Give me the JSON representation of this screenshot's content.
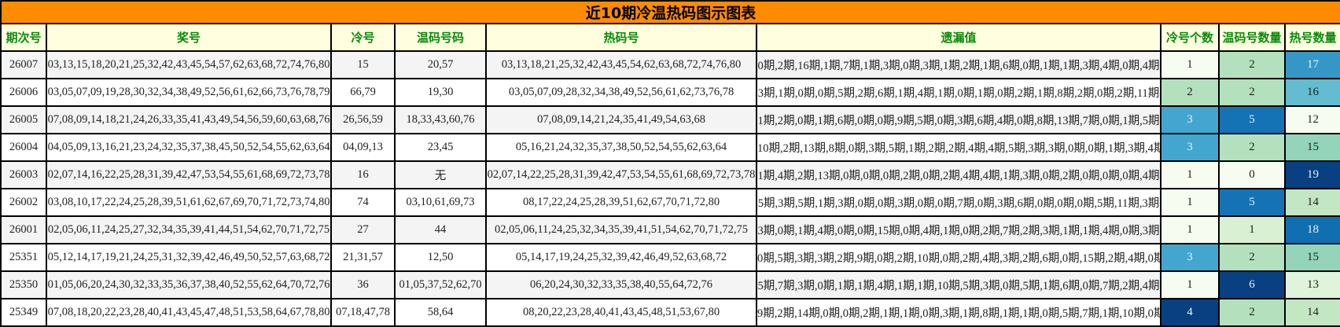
{
  "title": "近10期冷温热码图示图表",
  "headers": [
    "期次号",
    "奖号",
    "冷号",
    "温码号码",
    "热码号",
    "遗漏值",
    "冷号个数",
    "温码号数量",
    "热号数量"
  ],
  "rows": [
    {
      "issue": "26007",
      "numbers": "03,13,15,18,20,21,25,32,42,43,45,54,57,62,63,68,72,74,76,80",
      "cold": "15",
      "warm": "20,57",
      "hot": "03,13,18,21,25,32,42,43,45,54,62,63,68,72,74,76,80",
      "omission": "0期,2期,16期,1期,7期,1期,3期,0期,3期,1期,2期,1期,6期,0期,1期,1期,3期,4期,0期,4期",
      "cold_count": {
        "value": "1",
        "bg": "#f7fcf0",
        "fg": "#222"
      },
      "warm_count": {
        "value": "2",
        "bg": "#b3e1bd",
        "fg": "#222"
      },
      "hot_count": {
        "value": "17",
        "bg": "#3597c6",
        "fg": "#e8f0f8"
      }
    },
    {
      "issue": "26006",
      "numbers": "03,05,07,09,19,28,30,32,34,38,49,52,56,61,62,66,73,76,78,79",
      "cold": "66,79",
      "warm": "19,30",
      "hot": "03,05,07,09,28,32,34,38,49,52,56,61,62,73,76,78",
      "omission": "3期,1期,0期,0期,5期,2期,6期,1期,4期,1期,0期,1期,0期,2期,1期,8期,2期,0期,2期,11期",
      "cold_count": {
        "value": "2",
        "bg": "#b3e1bd",
        "fg": "#222"
      },
      "warm_count": {
        "value": "2",
        "bg": "#b3e1bd",
        "fg": "#222"
      },
      "hot_count": {
        "value": "16",
        "bg": "#63bccf",
        "fg": "#222"
      }
    },
    {
      "issue": "26005",
      "numbers": "07,08,09,14,18,21,24,26,33,35,41,43,49,54,56,59,60,63,68,76",
      "cold": "26,56,59",
      "warm": "18,33,43,60,76",
      "hot": "07,08,09,14,21,24,35,41,49,54,63,68",
      "omission": "1期,2期,0期,1期,6期,0期,0期,9期,5期,0期,3期,6期,4期,0期,8期,13期,7期,0期,1期,5期",
      "cold_count": {
        "value": "3",
        "bg": "#42a6cf",
        "fg": "#e8f0f8"
      },
      "warm_count": {
        "value": "5",
        "bg": "#1473b4",
        "fg": "#e8f0f8"
      },
      "hot_count": {
        "value": "12",
        "bg": "#f7fcf0",
        "fg": "#222"
      }
    },
    {
      "issue": "26004",
      "numbers": "04,05,09,13,16,21,23,24,32,35,37,38,45,50,52,54,55,62,63,64",
      "cold": "04,09,13",
      "warm": "23,45",
      "hot": "05,16,21,24,32,35,37,38,50,52,54,55,62,63,64",
      "omission": "10期,2期,13期,8期,0期,3期,5期,1期,2期,2期,4期,4期,5期,3期,3期,0期,0期,1期,3期,4期",
      "cold_count": {
        "value": "3",
        "bg": "#42a6cf",
        "fg": "#e8f0f8"
      },
      "warm_count": {
        "value": "2",
        "bg": "#b3e1bd",
        "fg": "#222"
      },
      "hot_count": {
        "value": "15",
        "bg": "#93d4ba",
        "fg": "#222"
      }
    },
    {
      "issue": "26003",
      "numbers": "02,07,14,16,22,25,28,31,39,42,47,53,54,55,61,68,69,72,73,78",
      "cold": "16",
      "warm": "无",
      "hot": "02,07,14,22,25,28,31,39,42,47,53,54,55,61,68,69,72,73,78",
      "omission": "1期,4期,2期,13期,0期,0期,0期,2期,0期,2期,4期,4期,1期,3期,0期,2期,0期,0期,0期,4期",
      "cold_count": {
        "value": "1",
        "bg": "#f7fcf0",
        "fg": "#222"
      },
      "warm_count": {
        "value": "0",
        "bg": "#f7fcf0",
        "fg": "#222"
      },
      "hot_count": {
        "value": "19",
        "bg": "#084081",
        "fg": "#e8f0f8"
      }
    },
    {
      "issue": "26002",
      "numbers": "03,08,10,17,22,24,25,28,39,51,61,62,67,69,70,71,72,73,74,80",
      "cold": "74",
      "warm": "03,10,61,69,73",
      "hot": "08,17,22,24,25,28,39,51,62,67,70,71,72,80",
      "omission": "5期,3期,5期,1期,3期,0期,0期,3期,0期,0期,7期,0期,3期,6期,0期,0期,0期,5期,11期,3期",
      "cold_count": {
        "value": "1",
        "bg": "#f7fcf0",
        "fg": "#222"
      },
      "warm_count": {
        "value": "5",
        "bg": "#1473b4",
        "fg": "#e8f0f8"
      },
      "hot_count": {
        "value": "14",
        "bg": "#c3e7c3",
        "fg": "#222"
      }
    },
    {
      "issue": "26001",
      "numbers": "02,05,06,11,24,25,27,32,34,35,39,41,44,51,54,62,70,71,72,75",
      "cold": "27",
      "warm": "44",
      "hot": "02,05,06,11,24,25,32,34,35,39,41,51,54,62,70,71,72,75",
      "omission": "3期,0期,1期,4期,0期,0期,15期,0期,4期,1期,0期,2期,7期,2期,3期,1期,1期,4期,0期,3期",
      "cold_count": {
        "value": "1",
        "bg": "#f7fcf0",
        "fg": "#222"
      },
      "warm_count": {
        "value": "1",
        "bg": "#d9f0d3",
        "fg": "#222"
      },
      "hot_count": {
        "value": "18",
        "bg": "#0f6fb0",
        "fg": "#e8f0f8"
      }
    },
    {
      "issue": "25351",
      "numbers": "05,12,14,17,19,21,24,25,31,32,39,42,46,49,50,52,57,63,68,72",
      "cold": "21,31,57",
      "warm": "12,50",
      "hot": "05,14,17,19,24,25,32,39,42,46,49,52,63,68,72",
      "omission": "0期,5期,3期,3期,2期,9期,0期,2期,10期,0期,2期,4期,3期,2期,6期,0期,15期,2期,4期,0期",
      "cold_count": {
        "value": "3",
        "bg": "#42a6cf",
        "fg": "#e8f0f8"
      },
      "warm_count": {
        "value": "2",
        "bg": "#b3e1bd",
        "fg": "#222"
      },
      "hot_count": {
        "value": "15",
        "bg": "#93d4ba",
        "fg": "#222"
      }
    },
    {
      "issue": "25350",
      "numbers": "01,05,06,20,24,30,32,33,35,36,37,38,40,52,55,62,64,70,72,76",
      "cold": "36",
      "warm": "01,05,37,52,62,70",
      "hot": "06,20,24,30,32,33,35,38,40,55,64,72,76",
      "omission": "5期,7期,3期,0期,1期,1期,4期,1期,1期,10期,5期,3期,0期,5期,1期,6期,0期,7期,2期,4期",
      "cold_count": {
        "value": "1",
        "bg": "#f7fcf0",
        "fg": "#222"
      },
      "warm_count": {
        "value": "6",
        "bg": "#084081",
        "fg": "#e8f0f8"
      },
      "hot_count": {
        "value": "13",
        "bg": "#e0f3db",
        "fg": "#222"
      }
    },
    {
      "issue": "25349",
      "numbers": "07,08,18,20,22,23,28,40,41,43,45,47,48,51,53,58,64,67,78,80",
      "cold": "07,18,47,78",
      "warm": "58,64",
      "hot": "08,20,22,23,28,40,41,43,45,48,51,53,67,80",
      "omission": "9期,2期,14期,0期,0期,2期,1期,1期,0期,3期,1期,8期,1期,1期,0期,5期,7期,1期,10期,0期",
      "cold_count": {
        "value": "4",
        "bg": "#084081",
        "fg": "#e8f0f8"
      },
      "warm_count": {
        "value": "2",
        "bg": "#b3e1bd",
        "fg": "#222"
      },
      "hot_count": {
        "value": "14",
        "bg": "#c3e7c3",
        "fg": "#222"
      }
    }
  ]
}
